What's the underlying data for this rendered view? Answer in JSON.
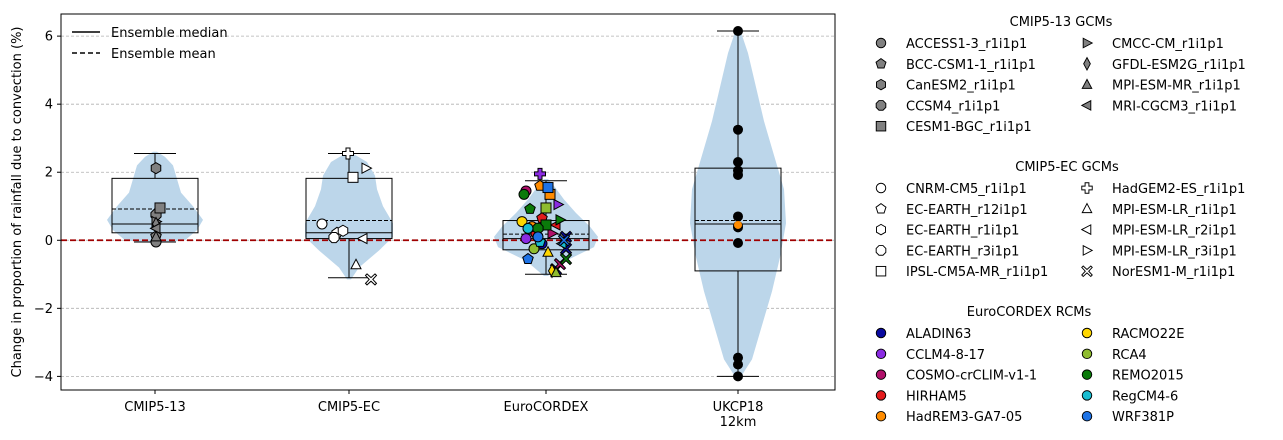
{
  "chart_data": {
    "type": "violin",
    "xlabel": "",
    "ylabel": "Change in proportion of rainfall due to convection (%)",
    "ylim": [
      -4.4,
      6.65
    ],
    "yticks": [
      -4,
      -2,
      0,
      2,
      4,
      6
    ],
    "grid": "y-dashed",
    "zero_line_color": "#a00000",
    "violin_color": "#bcd6ea",
    "categories": [
      "CMIP5-13",
      "CMIP5-EC",
      "EuroCORDEX",
      "UKCP18\n12km"
    ],
    "boxes": [
      {
        "q1": 0.22,
        "q3": 1.82,
        "median": 0.48,
        "mean": 0.92,
        "whisker_low": -0.05,
        "whisker_high": 2.55
      },
      {
        "q1": 0.05,
        "q3": 1.82,
        "median": 0.22,
        "mean": 0.58,
        "whisker_low": -1.1,
        "whisker_high": 2.55
      },
      {
        "q1": -0.28,
        "q3": 0.58,
        "median": 0.05,
        "mean": 0.18,
        "whisker_low": -1.0,
        "whisker_high": 1.75
      },
      {
        "q1": -0.9,
        "q3": 2.12,
        "median": 0.48,
        "mean": 0.58,
        "whisker_low": -4.0,
        "whisker_high": 6.15
      }
    ],
    "legend_lines": {
      "median": "Ensemble median",
      "mean": "Ensemble mean",
      "placement": "top-left"
    },
    "groups": [
      {
        "title": "CMIP5-13 GCMs",
        "members": [
          {
            "name": "ACCESS1-3_r1i1p1",
            "marker": "circle",
            "color": "#808080",
            "value": -0.05
          },
          {
            "name": "BCC-CSM1-1_r1i1p1",
            "marker": "pentagon",
            "color": "#808080",
            "value": 0.12
          },
          {
            "name": "CanESM2_r1i1p1",
            "marker": "hexagon",
            "color": "#808080",
            "value": 2.12
          },
          {
            "name": "CCSM4_r1i1p1",
            "marker": "octagon",
            "color": "#808080",
            "value": 0.75
          },
          {
            "name": "CESM1-BGC_r1i1p1",
            "marker": "square",
            "color": "#808080",
            "value": 0.95
          },
          {
            "name": "CMCC-CM_r1i1p1",
            "marker": "triangle-right",
            "color": "#808080",
            "value": 0.55
          },
          {
            "name": "GFDL-ESM2G_r1i1p1",
            "marker": "thin-diamond",
            "color": "#808080",
            "value": 0.48
          },
          {
            "name": "MPI-ESM-MR_r1i1p1",
            "marker": "triangle-up",
            "color": "#808080",
            "value": 0.1
          },
          {
            "name": "MRI-CGCM3_r1i1p1",
            "marker": "triangle-left",
            "color": "#808080",
            "value": 0.35
          }
        ]
      },
      {
        "title": "CMIP5-EC GCMs",
        "members": [
          {
            "name": "CNRM-CM5_r1i1p1",
            "marker": "circle",
            "color": "#ffffff",
            "value": 0.48
          },
          {
            "name": "EC-EARTH_r12i1p1",
            "marker": "pentagon",
            "color": "#ffffff",
            "value": 0.22
          },
          {
            "name": "EC-EARTH_r1i1p1",
            "marker": "hexagon",
            "color": "#ffffff",
            "value": 0.28
          },
          {
            "name": "EC-EARTH_r3i1p1",
            "marker": "octagon",
            "color": "#ffffff",
            "value": 0.08
          },
          {
            "name": "IPSL-CM5A-MR_r1i1p1",
            "marker": "square",
            "color": "#ffffff",
            "value": 1.85
          },
          {
            "name": "HadGEM2-ES_r1i1p1",
            "marker": "plus",
            "color": "#ffffff",
            "value": 2.55
          },
          {
            "name": "MPI-ESM-LR_r1i1p1",
            "marker": "triangle-up",
            "color": "#ffffff",
            "value": -0.72
          },
          {
            "name": "MPI-ESM-LR_r2i1p1",
            "marker": "triangle-left",
            "color": "#ffffff",
            "value": 0.05
          },
          {
            "name": "MPI-ESM-LR_r3i1p1",
            "marker": "triangle-right",
            "color": "#ffffff",
            "value": 2.12
          },
          {
            "name": "NorESM1-M_r1i1p1",
            "marker": "x",
            "color": "#ffffff",
            "value": -1.15
          }
        ]
      },
      {
        "title": "EuroCORDEX RCMs",
        "members": [
          {
            "name": "ALADIN63",
            "marker": "circle",
            "color": "#0a0aa0"
          },
          {
            "name": "CCLM4-8-17",
            "marker": "circle",
            "color": "#8a2be2"
          },
          {
            "name": "COSMO-crCLIM-v1-1",
            "marker": "circle",
            "color": "#b0106a"
          },
          {
            "name": "HIRHAM5",
            "marker": "circle",
            "color": "#e31a1c"
          },
          {
            "name": "HadREM3-GA7-05",
            "marker": "circle",
            "color": "#ff8c00"
          },
          {
            "name": "RACMO22E",
            "marker": "circle",
            "color": "#ffd700"
          },
          {
            "name": "RCA4",
            "marker": "circle",
            "color": "#8fbc2f"
          },
          {
            "name": "REMO2015",
            "marker": "circle",
            "color": "#0a7a0a"
          },
          {
            "name": "RegCM4-6",
            "marker": "circle",
            "color": "#18bcd0"
          },
          {
            "name": "WRF381P",
            "marker": "circle",
            "color": "#1e73e6"
          }
        ]
      }
    ],
    "ukcp18_points": [
      6.15,
      3.25,
      2.3,
      2.05,
      1.92,
      0.7,
      0.42,
      0.38,
      -0.08,
      -3.45,
      -3.65,
      -4.0
    ],
    "ukcp18_highlight": {
      "value": 0.45,
      "color": "#ff8c00"
    }
  }
}
